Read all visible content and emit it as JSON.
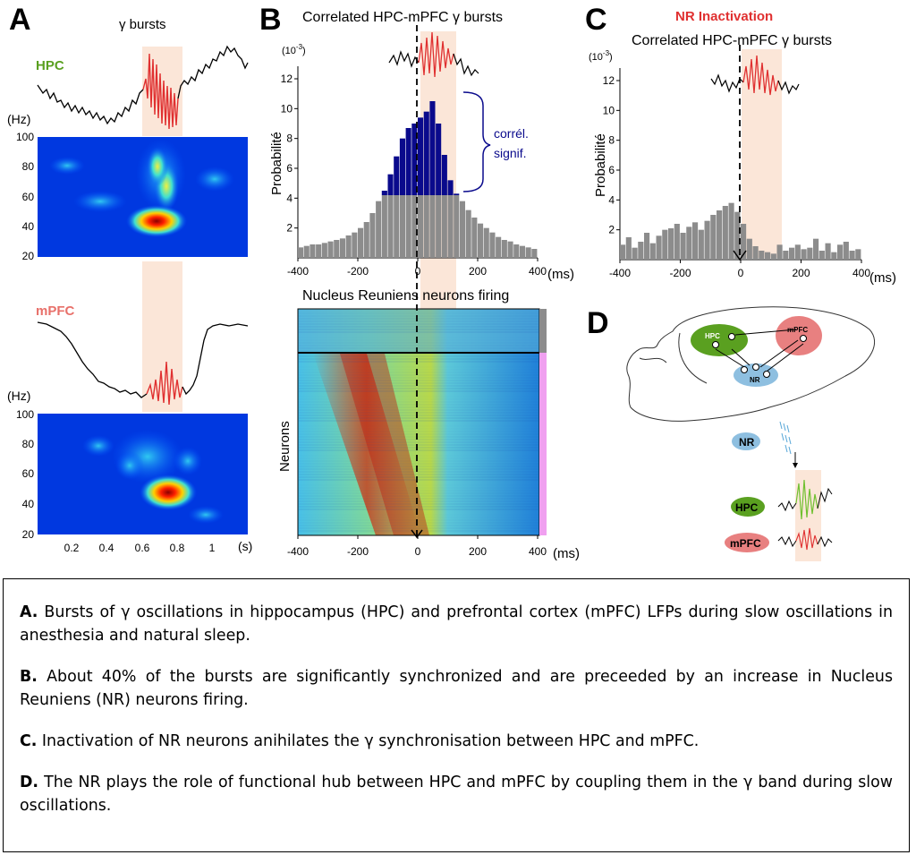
{
  "panel_letters": {
    "a": "A",
    "b": "B",
    "c": "C",
    "d": "D"
  },
  "panel_a": {
    "title": "γ bursts",
    "hpc_label": "HPC",
    "mpfc_label": "mPFC",
    "freq_unit": "(Hz)",
    "freq_ticks": [
      "100",
      "80",
      "60",
      "40",
      "20"
    ],
    "time_ticks": [
      "0.2",
      "0.4",
      "0.6",
      "0.8",
      "1"
    ],
    "time_unit": "(s)"
  },
  "panel_b": {
    "title": "Correlated HPC-mPFC γ bursts",
    "scale": "(10",
    "scale_exp": "-3",
    "scale_close": ")",
    "ylabel": "Probabilité",
    "bracket_label_1": "corrél.",
    "bracket_label_2": "signif.",
    "xunit": "(ms)",
    "raster_title": "Nucleus Reuniens neurons firing",
    "raster_ylabel": "Neurons",
    "raster_xunit": "(ms)"
  },
  "panel_c": {
    "header": "NR Inactivation",
    "title": "Correlated HPC-mPFC γ bursts",
    "scale": "(10",
    "scale_exp": "-3",
    "scale_close": ")",
    "ylabel": "Probabilité",
    "xunit": "(ms)"
  },
  "panel_d": {
    "hpc": "HPC",
    "mpfc": "mPFC",
    "nr": "NR",
    "nr_legend": "NR",
    "hpc_legend": "HPC",
    "mpfc_legend": "mPFC"
  },
  "chart_data": [
    {
      "type": "bar",
      "panel": "B",
      "title": "Correlated HPC-mPFC γ bursts",
      "xlabel": "(ms)",
      "ylabel": "Probabilité (10-3)",
      "xlim": [
        -400,
        400
      ],
      "ylim": [
        0,
        12
      ],
      "xticks": [
        -400,
        -200,
        0,
        200,
        400
      ],
      "yticks": [
        2,
        4,
        6,
        8,
        10,
        12
      ],
      "significance_threshold": 4.2,
      "x": [
        -390,
        -370,
        -350,
        -330,
        -310,
        -290,
        -270,
        -250,
        -230,
        -210,
        -190,
        -170,
        -150,
        -130,
        -110,
        -90,
        -70,
        -50,
        -30,
        -10,
        10,
        30,
        50,
        70,
        90,
        110,
        130,
        150,
        170,
        190,
        210,
        230,
        250,
        270,
        290,
        310,
        330,
        350,
        370,
        390
      ],
      "values": [
        0.7,
        0.8,
        0.9,
        0.9,
        1.0,
        1.1,
        1.2,
        1.3,
        1.5,
        1.7,
        2.0,
        2.4,
        3.0,
        3.8,
        4.5,
        5.6,
        6.8,
        8.0,
        8.7,
        9.0,
        9.4,
        9.8,
        10.5,
        9.0,
        6.9,
        5.2,
        4.3,
        3.8,
        3.2,
        2.7,
        2.3,
        2.0,
        1.7,
        1.4,
        1.2,
        1.1,
        0.9,
        0.8,
        0.7,
        0.6
      ]
    },
    {
      "type": "bar",
      "panel": "C",
      "title": "Correlated HPC-mPFC γ bursts",
      "subtitle": "NR Inactivation",
      "xlabel": "(ms)",
      "ylabel": "Probabilité (10-3)",
      "xlim": [
        -400,
        400
      ],
      "ylim": [
        0,
        12
      ],
      "xticks": [
        -400,
        -200,
        0,
        200,
        400
      ],
      "yticks": [
        2,
        4,
        6,
        8,
        10,
        12
      ],
      "x": [
        -390,
        -370,
        -350,
        -330,
        -310,
        -290,
        -270,
        -250,
        -230,
        -210,
        -190,
        -170,
        -150,
        -130,
        -110,
        -90,
        -70,
        -50,
        -30,
        -10,
        10,
        30,
        50,
        70,
        90,
        110,
        130,
        150,
        170,
        190,
        210,
        230,
        250,
        270,
        290,
        310,
        330,
        350,
        370,
        390
      ],
      "values": [
        1.0,
        1.5,
        0.8,
        1.2,
        1.8,
        1.1,
        1.6,
        2.0,
        2.1,
        2.4,
        1.8,
        2.2,
        2.5,
        2.0,
        2.6,
        3.0,
        3.3,
        3.6,
        3.8,
        3.2,
        2.4,
        1.4,
        0.9,
        0.6,
        0.5,
        0.4,
        1.0,
        0.6,
        0.8,
        1.0,
        0.7,
        0.8,
        1.4,
        0.6,
        1.1,
        0.5,
        1.0,
        1.2,
        0.6,
        0.7
      ]
    }
  ],
  "caption": [
    {
      "label": "A.",
      "text": "Bursts of γ oscillations in hippocampus (HPC) and prefrontal cortex (mPFC) LFPs during slow oscillations in anesthesia and natural sleep."
    },
    {
      "label": "B.",
      "text": "About 40% of the bursts are significantly synchronized and  are preceeded by an increase in Nucleus Reuniens (NR) neurons firing."
    },
    {
      "label": "C.",
      "text": "Inactivation of NR neurons anihilates the γ synchronisation  between HPC and mPFC."
    },
    {
      "label": "D.",
      "text": "The NR plays the role of functional hub between HPC and mPFC by coupling them in the γ band during slow oscillations."
    }
  ],
  "colors": {
    "red": "#e03030",
    "green": "#5aa020",
    "navy": "#0a0a8c",
    "grey": "#8c8c8c",
    "shade": "#fbe6d8",
    "nr_blue": "#8ebfe0"
  }
}
